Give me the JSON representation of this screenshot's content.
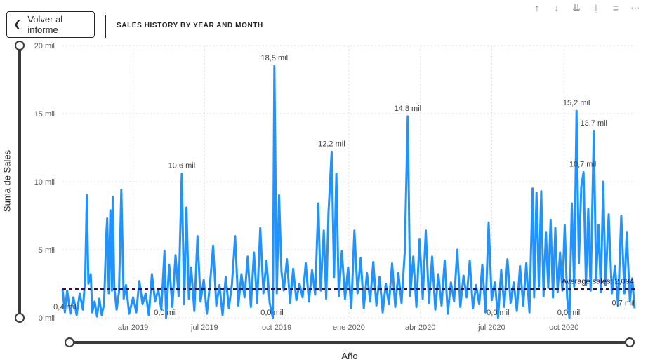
{
  "back_button": {
    "label": "Volver al informe",
    "icon": "chevron-left-icon"
  },
  "visual_title": "SALES HISTORY BY YEAR AND MONTH",
  "toolbar": [
    {
      "name": "drill-up-icon",
      "glyph": "↑"
    },
    {
      "name": "drill-down-icon",
      "glyph": "↓"
    },
    {
      "name": "expand-next-level-icon",
      "glyph": "⇊"
    },
    {
      "name": "hierarchy-icon",
      "glyph": "⍊"
    },
    {
      "name": "filter-icon",
      "glyph": "≡"
    },
    {
      "name": "more-options-icon",
      "glyph": "⋯"
    }
  ],
  "colors": {
    "line": "#1f93ff",
    "average": "#3b0a45",
    "grid": "#e1dfdd",
    "slider": "#3a3a3a"
  },
  "chart_data": {
    "type": "line",
    "ylabel": "Suma de Sales",
    "xlabel": "Año",
    "ylim": [
      0,
      20000
    ],
    "yticks": [
      {
        "value": 0,
        "label": "0 mil"
      },
      {
        "value": 5000,
        "label": "5 mil"
      },
      {
        "value": 10000,
        "label": "10 mil"
      },
      {
        "value": 15000,
        "label": "15 mil"
      },
      {
        "value": 20000,
        "label": "20 mil"
      }
    ],
    "xrange": [
      "2019-01-01",
      "2020-12-31"
    ],
    "xticks": [
      {
        "date": "2019-04-01",
        "label": "abr 2019"
      },
      {
        "date": "2019-07-01",
        "label": "jul 2019"
      },
      {
        "date": "2019-10-01",
        "label": "oct 2019"
      },
      {
        "date": "2020-01-01",
        "label": "ene 2020"
      },
      {
        "date": "2020-04-01",
        "label": "abr 2020"
      },
      {
        "date": "2020-07-01",
        "label": "jul 2020"
      },
      {
        "date": "2020-10-01",
        "label": "oct 2020"
      }
    ],
    "average": {
      "value": 2094,
      "label": "Average sales: 2,094"
    },
    "annotations": [
      {
        "date": "2019-01-04",
        "value": 400,
        "label": "0,4 mil"
      },
      {
        "date": "2019-06-02",
        "value": 10600,
        "label": "10,6 mil"
      },
      {
        "date": "2019-05-12",
        "value": 0,
        "label": "0,0 mil"
      },
      {
        "date": "2019-09-28",
        "value": 18500,
        "label": "18,5 mil"
      },
      {
        "date": "2019-09-25",
        "value": 0,
        "label": "0,0 mil"
      },
      {
        "date": "2019-12-10",
        "value": 12200,
        "label": "12,2 mil"
      },
      {
        "date": "2020-03-16",
        "value": 14800,
        "label": "14,8 mil"
      },
      {
        "date": "2020-07-09",
        "value": 0,
        "label": "0,0 mil"
      },
      {
        "date": "2020-10-17",
        "value": 15200,
        "label": "15,2 mil"
      },
      {
        "date": "2020-10-07",
        "value": 0,
        "label": "0,0 mil"
      },
      {
        "date": "2020-10-25",
        "value": 10700,
        "label": "10,7 mil"
      },
      {
        "date": "2020-11-08",
        "value": 13700,
        "label": "13,7 mil"
      },
      {
        "date": "2020-12-30",
        "value": 700,
        "label": "0,7 mil"
      }
    ],
    "series": [
      {
        "points": [
          [
            "2019-01-01",
            2100
          ],
          [
            "2019-01-04",
            400
          ],
          [
            "2019-01-07",
            2000
          ],
          [
            "2019-01-11",
            300
          ],
          [
            "2019-01-15",
            1500
          ],
          [
            "2019-01-19",
            200
          ],
          [
            "2019-01-23",
            1800
          ],
          [
            "2019-01-27",
            600
          ],
          [
            "2019-01-30",
            3000
          ],
          [
            "2019-02-01",
            9000
          ],
          [
            "2019-02-03",
            2500
          ],
          [
            "2019-02-06",
            3200
          ],
          [
            "2019-02-08",
            400
          ],
          [
            "2019-02-11",
            1200
          ],
          [
            "2019-02-14",
            100
          ],
          [
            "2019-02-17",
            1400
          ],
          [
            "2019-02-20",
            200
          ],
          [
            "2019-02-23",
            1000
          ],
          [
            "2019-02-26",
            6300
          ],
          [
            "2019-02-27",
            7300
          ],
          [
            "2019-03-01",
            1800
          ],
          [
            "2019-03-03",
            7900
          ],
          [
            "2019-03-05",
            2000
          ],
          [
            "2019-03-06",
            8900
          ],
          [
            "2019-03-08",
            2200
          ],
          [
            "2019-03-11",
            600
          ],
          [
            "2019-03-14",
            1900
          ],
          [
            "2019-03-17",
            9400
          ],
          [
            "2019-03-20",
            1400
          ],
          [
            "2019-03-23",
            2400
          ],
          [
            "2019-03-27",
            300
          ],
          [
            "2019-04-01",
            1500
          ],
          [
            "2019-04-05",
            400
          ],
          [
            "2019-04-09",
            2700
          ],
          [
            "2019-04-13",
            1000
          ],
          [
            "2019-04-17",
            1800
          ],
          [
            "2019-04-21",
            200
          ],
          [
            "2019-04-25",
            3200
          ],
          [
            "2019-04-29",
            1200
          ],
          [
            "2019-05-03",
            2100
          ],
          [
            "2019-05-07",
            600
          ],
          [
            "2019-05-11",
            4900
          ],
          [
            "2019-05-13",
            0
          ],
          [
            "2019-05-17",
            3900
          ],
          [
            "2019-05-21",
            800
          ],
          [
            "2019-05-25",
            4600
          ],
          [
            "2019-05-29",
            1600
          ],
          [
            "2019-06-02",
            10600
          ],
          [
            "2019-06-05",
            1000
          ],
          [
            "2019-06-08",
            8100
          ],
          [
            "2019-06-11",
            1400
          ],
          [
            "2019-06-14",
            3700
          ],
          [
            "2019-06-18",
            500
          ],
          [
            "2019-06-22",
            6000
          ],
          [
            "2019-06-26",
            1200
          ],
          [
            "2019-06-30",
            2800
          ],
          [
            "2019-07-04",
            300
          ],
          [
            "2019-07-08",
            2500
          ],
          [
            "2019-07-12",
            5300
          ],
          [
            "2019-07-16",
            900
          ],
          [
            "2019-07-20",
            2400
          ],
          [
            "2019-07-24",
            200
          ],
          [
            "2019-07-28",
            3000
          ],
          [
            "2019-08-01",
            700
          ],
          [
            "2019-08-05",
            2500
          ],
          [
            "2019-08-09",
            6000
          ],
          [
            "2019-08-13",
            900
          ],
          [
            "2019-08-17",
            3200
          ],
          [
            "2019-08-21",
            1500
          ],
          [
            "2019-08-25",
            4500
          ],
          [
            "2019-08-29",
            800
          ],
          [
            "2019-09-02",
            4800
          ],
          [
            "2019-09-06",
            1100
          ],
          [
            "2019-09-10",
            6600
          ],
          [
            "2019-09-14",
            1800
          ],
          [
            "2019-09-18",
            4200
          ],
          [
            "2019-09-22",
            1100
          ],
          [
            "2019-09-26",
            0
          ],
          [
            "2019-09-28",
            18500
          ],
          [
            "2019-10-01",
            1800
          ],
          [
            "2019-10-04",
            9000
          ],
          [
            "2019-10-07",
            3400
          ],
          [
            "2019-10-10",
            2000
          ],
          [
            "2019-10-14",
            4300
          ],
          [
            "2019-10-18",
            1100
          ],
          [
            "2019-10-22",
            3600
          ],
          [
            "2019-10-26",
            1300
          ],
          [
            "2019-10-30",
            2500
          ],
          [
            "2019-11-03",
            1500
          ],
          [
            "2019-11-07",
            4000
          ],
          [
            "2019-11-11",
            1200
          ],
          [
            "2019-11-15",
            3500
          ],
          [
            "2019-11-19",
            1700
          ],
          [
            "2019-11-23",
            8400
          ],
          [
            "2019-11-26",
            2000
          ],
          [
            "2019-11-30",
            6400
          ],
          [
            "2019-12-03",
            1400
          ],
          [
            "2019-12-06",
            7700
          ],
          [
            "2019-12-10",
            12200
          ],
          [
            "2019-12-13",
            3000
          ],
          [
            "2019-12-16",
            10600
          ],
          [
            "2019-12-19",
            1600
          ],
          [
            "2019-12-23",
            4900
          ],
          [
            "2019-12-27",
            1400
          ],
          [
            "2019-12-31",
            3700
          ],
          [
            "2020-01-04",
            700
          ],
          [
            "2020-01-08",
            6400
          ],
          [
            "2020-01-12",
            1800
          ],
          [
            "2020-01-16",
            4400
          ],
          [
            "2020-01-20",
            700
          ],
          [
            "2020-01-24",
            3300
          ],
          [
            "2020-01-28",
            1200
          ],
          [
            "2020-02-01",
            4100
          ],
          [
            "2020-02-05",
            900
          ],
          [
            "2020-02-09",
            3000
          ],
          [
            "2020-02-13",
            400
          ],
          [
            "2020-02-17",
            2500
          ],
          [
            "2020-02-21",
            1000
          ],
          [
            "2020-02-25",
            4000
          ],
          [
            "2020-02-29",
            800
          ],
          [
            "2020-03-04",
            3300
          ],
          [
            "2020-03-08",
            1100
          ],
          [
            "2020-03-12",
            4700
          ],
          [
            "2020-03-16",
            14800
          ],
          [
            "2020-03-19",
            1600
          ],
          [
            "2020-03-23",
            4500
          ],
          [
            "2020-03-27",
            800
          ],
          [
            "2020-03-31",
            5800
          ],
          [
            "2020-04-04",
            1400
          ],
          [
            "2020-04-08",
            6400
          ],
          [
            "2020-04-12",
            1100
          ],
          [
            "2020-04-16",
            4500
          ],
          [
            "2020-04-20",
            600
          ],
          [
            "2020-04-24",
            3200
          ],
          [
            "2020-04-28",
            900
          ],
          [
            "2020-05-02",
            4200
          ],
          [
            "2020-05-06",
            300
          ],
          [
            "2020-05-10",
            2600
          ],
          [
            "2020-05-14",
            1200
          ],
          [
            "2020-05-18",
            5000
          ],
          [
            "2020-05-22",
            800
          ],
          [
            "2020-05-26",
            3100
          ],
          [
            "2020-05-30",
            1500
          ],
          [
            "2020-06-03",
            4200
          ],
          [
            "2020-06-07",
            700
          ],
          [
            "2020-06-11",
            2400
          ],
          [
            "2020-06-15",
            1000
          ],
          [
            "2020-06-19",
            3900
          ],
          [
            "2020-06-23",
            400
          ],
          [
            "2020-06-27",
            7000
          ],
          [
            "2020-07-01",
            1300
          ],
          [
            "2020-07-05",
            2600
          ],
          [
            "2020-07-09",
            0
          ],
          [
            "2020-07-13",
            3500
          ],
          [
            "2020-07-17",
            800
          ],
          [
            "2020-07-21",
            4300
          ],
          [
            "2020-07-25",
            1100
          ],
          [
            "2020-07-29",
            2600
          ],
          [
            "2020-08-02",
            500
          ],
          [
            "2020-08-06",
            3800
          ],
          [
            "2020-08-10",
            900
          ],
          [
            "2020-08-14",
            4000
          ],
          [
            "2020-08-18",
            400
          ],
          [
            "2020-08-22",
            9500
          ],
          [
            "2020-08-24",
            1500
          ],
          [
            "2020-08-27",
            9200
          ],
          [
            "2020-08-30",
            2300
          ],
          [
            "2020-09-02",
            9300
          ],
          [
            "2020-09-05",
            1600
          ],
          [
            "2020-09-08",
            6300
          ],
          [
            "2020-09-11",
            2200
          ],
          [
            "2020-09-14",
            7200
          ],
          [
            "2020-09-17",
            1500
          ],
          [
            "2020-09-20",
            6600
          ],
          [
            "2020-09-23",
            1900
          ],
          [
            "2020-09-26",
            4800
          ],
          [
            "2020-09-29",
            2000
          ],
          [
            "2020-10-02",
            6800
          ],
          [
            "2020-10-05",
            1500
          ],
          [
            "2020-10-08",
            0
          ],
          [
            "2020-10-11",
            8400
          ],
          [
            "2020-10-14",
            2300
          ],
          [
            "2020-10-17",
            15200
          ],
          [
            "2020-10-20",
            4000
          ],
          [
            "2020-10-23",
            9600
          ],
          [
            "2020-10-26",
            10700
          ],
          [
            "2020-10-29",
            2400
          ],
          [
            "2020-11-01",
            8000
          ],
          [
            "2020-11-04",
            2000
          ],
          [
            "2020-11-08",
            13700
          ],
          [
            "2020-11-11",
            2800
          ],
          [
            "2020-11-14",
            6800
          ],
          [
            "2020-11-17",
            1900
          ],
          [
            "2020-11-20",
            10000
          ],
          [
            "2020-11-23",
            2400
          ],
          [
            "2020-11-27",
            7600
          ],
          [
            "2020-12-01",
            1800
          ],
          [
            "2020-12-05",
            3800
          ],
          [
            "2020-12-09",
            900
          ],
          [
            "2020-12-13",
            7500
          ],
          [
            "2020-12-17",
            1800
          ],
          [
            "2020-12-20",
            6300
          ],
          [
            "2020-12-24",
            1200
          ],
          [
            "2020-12-27",
            2900
          ],
          [
            "2020-12-30",
            700
          ]
        ]
      }
    ]
  }
}
